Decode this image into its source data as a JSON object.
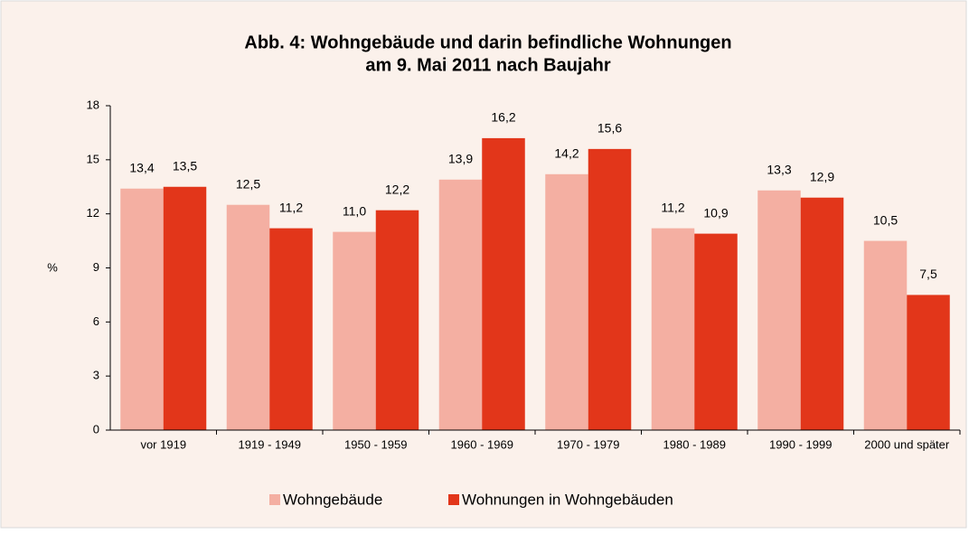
{
  "chart_data": {
    "type": "bar",
    "title": [
      "Abb. 4: Wohngebäude und darin befindliche Wohnungen",
      "am 9. Mai 2011 nach Baujahr"
    ],
    "y_label": "%",
    "categories": [
      "vor 1919",
      "1919 - 1949",
      "1950 - 1959",
      "1960 - 1969",
      "1970 - 1979",
      "1980 - 1989",
      "1990 - 1999",
      "2000 und später"
    ],
    "series": [
      {
        "name": "Wohngebäude",
        "color": "#f4afa2",
        "values": [
          13.4,
          12.5,
          11.0,
          13.9,
          14.2,
          11.2,
          13.3,
          10.5
        ],
        "value_labels": [
          "13,4",
          "12,5",
          "11,0",
          "13,9",
          "14,2",
          "11,2",
          "13,3",
          "10,5"
        ]
      },
      {
        "name": "Wohnungen in Wohngebäuden",
        "color": "#e2361a",
        "values": [
          13.5,
          11.2,
          12.2,
          16.2,
          15.6,
          10.9,
          12.9,
          7.5
        ],
        "value_labels": [
          "13,5",
          "11,2",
          "12,2",
          "16,2",
          "15,6",
          "10,9",
          "12,9",
          "7,5"
        ]
      }
    ],
    "ylim": [
      0,
      18
    ],
    "yticks": [
      0,
      3,
      6,
      9,
      12,
      15,
      18
    ],
    "legend": "bottom"
  }
}
